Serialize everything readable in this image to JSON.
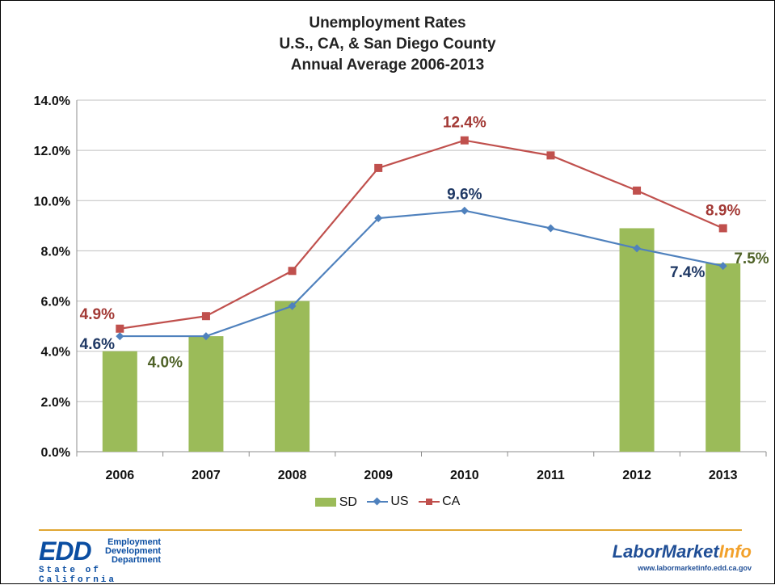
{
  "chart_data": {
    "type": "bar",
    "title_lines": [
      "Unemployment Rates",
      "U.S., CA, & San Diego County",
      "Annual Average 2006-2013"
    ],
    "categories": [
      "2006",
      "2007",
      "2008",
      "2009",
      "2010",
      "2011",
      "2012",
      "2013"
    ],
    "ylim": [
      0,
      14
    ],
    "yticks": [
      "0.0%",
      "2.0%",
      "4.0%",
      "6.0%",
      "8.0%",
      "10.0%",
      "12.0%",
      "14.0%"
    ],
    "grid": true,
    "legend_position": "bottom",
    "series": [
      {
        "name": "SD",
        "kind": "bar",
        "color": "#9bbb59",
        "values": [
          4.0,
          4.6,
          6.0,
          null,
          null,
          null,
          8.9,
          7.5
        ],
        "labels": [
          "4.0%",
          null,
          null,
          null,
          null,
          null,
          null,
          "7.5%"
        ],
        "label_color": "#4f6228"
      },
      {
        "name": "US",
        "kind": "line",
        "marker": "diamond",
        "color": "#4f81bd",
        "values": [
          4.6,
          4.6,
          5.8,
          9.3,
          9.6,
          8.9,
          8.1,
          7.4
        ],
        "labels": [
          "4.6%",
          null,
          null,
          null,
          "9.6%",
          null,
          null,
          "7.4%"
        ],
        "label_color": "#1f3864"
      },
      {
        "name": "CA",
        "kind": "line",
        "marker": "square",
        "color": "#c0504d",
        "values": [
          4.9,
          5.4,
          7.2,
          11.3,
          12.4,
          11.8,
          10.4,
          8.9
        ],
        "labels": [
          "4.9%",
          null,
          null,
          null,
          "12.4%",
          null,
          null,
          "8.9%"
        ],
        "label_color": "#a33a36"
      }
    ]
  },
  "footer": {
    "edd_mark": "EDD",
    "edd_sub": [
      "Employment",
      "Development",
      "Department"
    ],
    "edd_state": "State of California",
    "lmi_name_main": "LaborMarket",
    "lmi_name_accent": "Info",
    "lmi_url": "www.labormarketinfo.edd.ca.gov"
  }
}
